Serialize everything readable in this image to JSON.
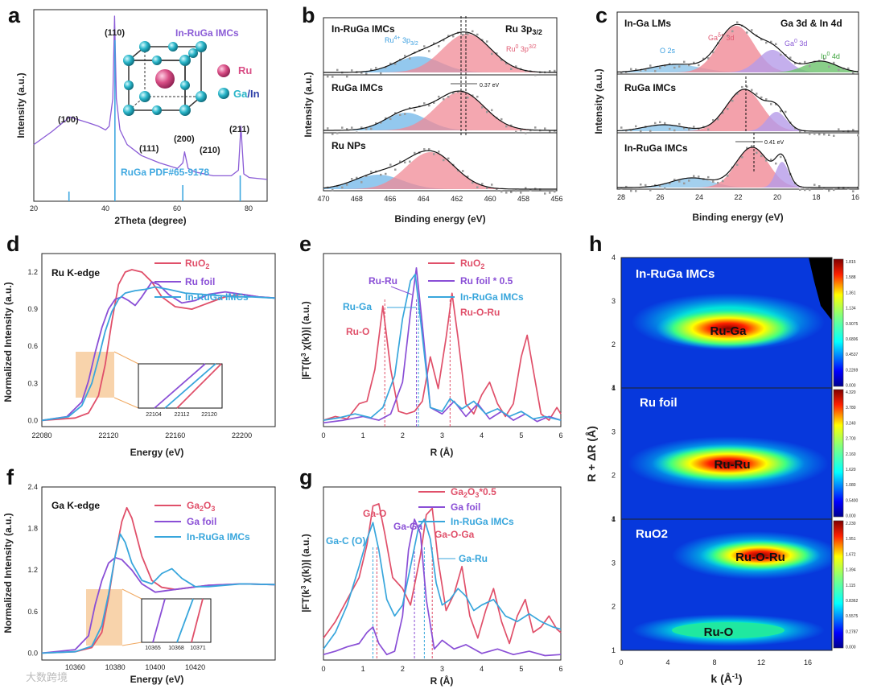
{
  "panels": {
    "a": {
      "label": "a",
      "xlabel": "2Theta (degree)",
      "ylabel": "Intensity (a.u.)",
      "xticks": [
        "20",
        "40",
        "60",
        "80"
      ],
      "series_label": "In-RuGa IMCs",
      "peaks": [
        "(100)",
        "(110)",
        "(111)",
        "(200)",
        "(210)",
        "(211)"
      ],
      "reference": "RuGa PDF#65-9178",
      "legend": [
        "Ru",
        "Ga/In"
      ],
      "colors": {
        "pattern": "#8a5bd6",
        "reference": "#3fa8e0",
        "ru": "#d94f86",
        "ga": "#29b5c9",
        "in": "#2c3ea8"
      }
    },
    "b": {
      "label": "b",
      "title": "Ru 3p3/2",
      "xlabel": "Binding energy (eV)",
      "ylabel": "Intensity (a.u.)",
      "xticks": [
        "470",
        "468",
        "466",
        "464",
        "462",
        "460",
        "458",
        "456"
      ],
      "rows": [
        "In-RuGa IMCs",
        "RuGa IMCs",
        "Ru NPs"
      ],
      "components": [
        "Ru4+ 3p3/2",
        "Ru0 3p3/2"
      ],
      "shift": "0.37 eV",
      "colors": {
        "ru4": "#6fb6e8",
        "ru0": "#f08a96",
        "envelope": "#111111",
        "dots": "#999999"
      }
    },
    "c": {
      "label": "c",
      "title": "Ga 3d & In 4d",
      "xlabel": "Binding energy (eV)",
      "ylabel": "Intensity (a.u.)",
      "xticks": [
        "28",
        "26",
        "24",
        "22",
        "20",
        "18",
        "16"
      ],
      "rows": [
        "In-Ga LMs",
        "RuGa IMCs",
        "In-RuGa IMCs"
      ],
      "components": [
        "O 2s",
        "Gaδ+ 3d",
        "Ga0 3d",
        "In0 4d"
      ],
      "shift": "0.41 eV",
      "colors": {
        "o2s": "#8cc4ea",
        "gad": "#f08a96",
        "ga0": "#b59be8",
        "in0": "#6cc26c"
      }
    },
    "d": {
      "label": "d",
      "title": "Ru K-edge",
      "xlabel": "Energy (eV)",
      "ylabel": "Normalized Intensity (a.u.)",
      "xticks": [
        "22080",
        "22120",
        "22160",
        "22200"
      ],
      "yticks": [
        "0.0",
        "0.3",
        "0.6",
        "0.9",
        "1.2"
      ],
      "inset_ticks": [
        "22104",
        "22112",
        "22120"
      ],
      "legend": [
        "RuO2",
        "Ru foil",
        "In-RuGa IMCs"
      ],
      "colors": {
        "ruo2": "#e0506a",
        "foil": "#8a4fd6",
        "imc": "#38a6dc",
        "box": "#f6c48f"
      }
    },
    "e": {
      "label": "e",
      "xlabel": "R (Å)",
      "ylabel": "|FT(k3 χ(k))| (a.u.)",
      "xticks": [
        "0",
        "1",
        "2",
        "3",
        "4",
        "5",
        "6"
      ],
      "legend": [
        "RuO2",
        "Ru foil * 0.5",
        "In-RuGa IMCs",
        "Ru-O-Ru"
      ],
      "annotations": [
        "Ru-Ru",
        "Ru-Ga",
        "Ru-O"
      ]
    },
    "f": {
      "label": "f",
      "title": "Ga K-edge",
      "xlabel": "Energy (eV)",
      "ylabel": "Normalized Intensity (a.u.)",
      "xticks": [
        "10360",
        "10380",
        "10400",
        "10420"
      ],
      "yticks": [
        "0.0",
        "0.6",
        "1.2",
        "1.8",
        "2.4"
      ],
      "inset_ticks": [
        "10365",
        "10368",
        "10371"
      ],
      "legend": [
        "Ga2O3",
        "Ga foil",
        "In-RuGa IMCs"
      ]
    },
    "g": {
      "label": "g",
      "xlabel": "R (Å)",
      "ylabel": "|FT(k3 χ(k))| (a.u.)",
      "xticks": [
        "0",
        "1",
        "2",
        "3",
        "4",
        "5",
        "6"
      ],
      "legend": [
        "Ga2O3*0.5",
        "Ga foil",
        "In-RuGa IMCs"
      ],
      "annotations": [
        "Ga-O",
        "Ga-Ga",
        "Ga-O-Ga",
        "Ga-C (O)",
        "Ga-Ru"
      ]
    },
    "h": {
      "label": "h",
      "xlabel": "k (Å-1)",
      "ylabel": "R + ΔR (Å)",
      "xticks": [
        "0",
        "4",
        "8",
        "12",
        "16"
      ],
      "yticks": [
        "1",
        "2",
        "3",
        "4"
      ],
      "maps": [
        {
          "name": "In-RuGa IMCs",
          "feature": "Ru-Ga",
          "scale": [
            "1.815",
            "1.588",
            "1.361",
            "1.134",
            "0.9075",
            "0.6806",
            "0.4537",
            "0.2269",
            "0.000"
          ]
        },
        {
          "name": "Ru foil",
          "feature": "Ru-Ru",
          "scale": [
            "4.320",
            "3.780",
            "3.240",
            "2.700",
            "2.160",
            "1.620",
            "1.080",
            "0.5400",
            "0.000"
          ]
        },
        {
          "name": "RuO2",
          "feature": "Ru-O-Ru",
          "feature2": "Ru-O",
          "scale": [
            "2.230",
            "1.951",
            "1.672",
            "1.394",
            "1.115",
            "0.8362",
            "0.5575",
            "0.2787",
            "0.000"
          ]
        }
      ]
    }
  },
  "watermark": "大数跨境",
  "chart_data": [
    {
      "type": "line",
      "panel": "a",
      "xlabel": "2Theta (degree)",
      "ylabel": "Intensity (a.u.)",
      "xlim": [
        20,
        85
      ],
      "series": [
        {
          "name": "In-RuGa IMCs",
          "x": [
            20,
            25,
            30,
            35,
            38,
            40,
            41,
            42,
            42.5,
            43,
            44,
            46,
            50,
            55,
            60,
            61.5,
            62,
            63,
            65,
            70,
            75,
            77,
            77.7,
            78.5,
            80,
            85
          ],
          "y": [
            0.3,
            0.37,
            0.45,
            0.42,
            0.4,
            0.38,
            0.4,
            0.55,
            1.0,
            0.55,
            0.38,
            0.3,
            0.24,
            0.2,
            0.17,
            0.2,
            0.26,
            0.17,
            0.15,
            0.13,
            0.13,
            0.16,
            0.4,
            0.14,
            0.12,
            0.11
          ]
        },
        {
          "name": "RuGa PDF#65-9178",
          "x": [
            29.8,
            42.6,
            61.5,
            77.5
          ],
          "y": [
            0.06,
            1.0,
            0.1,
            0.16
          ]
        }
      ]
    },
    {
      "type": "line",
      "panel": "d",
      "xlabel": "Energy (eV)",
      "ylabel": "Normalized Intensity (a.u.)",
      "xlim": [
        22080,
        22220
      ],
      "ylim": [
        -0.05,
        1.35
      ],
      "series": [
        {
          "name": "RuO2",
          "x": [
            22080,
            22100,
            22108,
            22114,
            22118,
            22122,
            22126,
            22130,
            22134,
            22140,
            22146,
            22152,
            22160,
            22170,
            22180,
            22190,
            22200,
            22210,
            22220
          ],
          "y": [
            0.0,
            0.02,
            0.06,
            0.2,
            0.45,
            0.8,
            1.1,
            1.2,
            1.22,
            1.2,
            1.12,
            1.0,
            0.92,
            0.9,
            0.95,
            1.0,
            1.02,
            1.0,
            0.99
          ]
        },
        {
          "name": "Ru foil",
          "x": [
            22080,
            22095,
            22104,
            22108,
            22112,
            22116,
            22120,
            22124,
            22128,
            22132,
            22136,
            22140,
            22146,
            22150,
            22156,
            22164,
            22172,
            22180,
            22190,
            22200,
            22210,
            22220
          ],
          "y": [
            0.0,
            0.03,
            0.15,
            0.32,
            0.55,
            0.75,
            0.9,
            0.98,
            1.0,
            0.97,
            0.93,
            1.0,
            1.12,
            1.1,
            1.02,
            0.95,
            0.97,
            1.02,
            1.04,
            1.02,
            1.0,
            0.99
          ]
        },
        {
          "name": "In-RuGa IMCs",
          "x": [
            22080,
            22096,
            22104,
            22110,
            22114,
            22118,
            22122,
            22126,
            22130,
            22136,
            22142,
            22148,
            22156,
            22166,
            22176,
            22186,
            22196,
            22206,
            22220
          ],
          "y": [
            0.0,
            0.03,
            0.12,
            0.3,
            0.5,
            0.72,
            0.88,
            0.98,
            1.03,
            1.05,
            1.06,
            1.08,
            1.06,
            1.03,
            1.02,
            1.01,
            1.0,
            1.0,
            0.99
          ]
        }
      ]
    },
    {
      "type": "line",
      "panel": "e",
      "xlabel": "R (Å)",
      "ylabel": "|FT(k3 χ(k))| (a.u.)",
      "xlim": [
        0,
        6
      ],
      "series": [
        {
          "name": "RuO2",
          "x": [
            0,
            0.3,
            0.6,
            0.9,
            1.1,
            1.3,
            1.5,
            1.7,
            1.9,
            2.1,
            2.3,
            2.5,
            2.7,
            2.9,
            3.1,
            3.25,
            3.4,
            3.6,
            3.8,
            4.0,
            4.2,
            4.4,
            4.6,
            4.8,
            5.0,
            5.15,
            5.3,
            5.5,
            5.7,
            5.9,
            6.0
          ],
          "y": [
            0.05,
            0.08,
            0.06,
            0.18,
            0.2,
            0.45,
            0.95,
            0.45,
            0.12,
            0.1,
            0.12,
            0.2,
            0.55,
            0.3,
            0.7,
            1.05,
            0.7,
            0.18,
            0.1,
            0.25,
            0.35,
            0.18,
            0.08,
            0.18,
            0.55,
            0.72,
            0.45,
            0.1,
            0.05,
            0.15,
            0.1
          ]
        },
        {
          "name": "Ru foil * 0.5",
          "x": [
            0,
            0.5,
            1.0,
            1.4,
            1.7,
            2.0,
            2.2,
            2.35,
            2.5,
            2.7,
            3.0,
            3.3,
            3.6,
            3.9,
            4.2,
            4.5,
            4.8,
            5.1,
            5.4,
            5.7,
            6.0
          ],
          "y": [
            0.03,
            0.05,
            0.08,
            0.05,
            0.1,
            0.35,
            0.9,
            1.25,
            0.8,
            0.15,
            0.1,
            0.2,
            0.08,
            0.18,
            0.06,
            0.12,
            0.05,
            0.1,
            0.04,
            0.08,
            0.05
          ]
        },
        {
          "name": "In-RuGa IMCs",
          "x": [
            0,
            0.4,
            0.8,
            1.2,
            1.5,
            1.8,
            2.0,
            2.2,
            2.32,
            2.45,
            2.7,
            3.0,
            3.2,
            3.5,
            3.8,
            4.1,
            4.4,
            4.7,
            5.0,
            5.3,
            5.6,
            6.0
          ],
          "y": [
            0.05,
            0.07,
            0.1,
            0.07,
            0.15,
            0.4,
            0.85,
            1.15,
            1.2,
            0.85,
            0.15,
            0.12,
            0.22,
            0.14,
            0.2,
            0.1,
            0.14,
            0.08,
            0.12,
            0.06,
            0.08,
            0.05
          ]
        }
      ]
    },
    {
      "type": "line",
      "panel": "f",
      "xlabel": "Energy (eV)",
      "ylabel": "Normalized Intensity (a.u.)",
      "xlim": [
        10350,
        10420
      ],
      "ylim": [
        -0.1,
        2.4
      ],
      "series": [
        {
          "name": "Ga2O3",
          "x": [
            10350,
            10360,
            10365,
            10368,
            10370,
            10372,
            10374,
            10375.5,
            10377,
            10380,
            10383,
            10386,
            10390,
            10395,
            10400,
            10410,
            10420
          ],
          "y": [
            0.0,
            0.02,
            0.08,
            0.3,
            0.8,
            1.4,
            1.9,
            2.1,
            1.95,
            1.4,
            1.05,
            0.95,
            0.92,
            0.95,
            0.98,
            1.0,
            0.99
          ]
        },
        {
          "name": "Ga foil",
          "x": [
            10350,
            10360,
            10364,
            10366,
            10368,
            10370,
            10372,
            10374,
            10377,
            10380,
            10384,
            10390,
            10400,
            10410,
            10420
          ],
          "y": [
            0.0,
            0.05,
            0.25,
            0.7,
            1.05,
            1.3,
            1.38,
            1.35,
            1.2,
            1.0,
            0.88,
            0.92,
            0.98,
            1.0,
            0.99
          ]
        },
        {
          "name": "In-RuGa IMCs",
          "x": [
            10350,
            10360,
            10365,
            10368,
            10370,
            10372,
            10373.5,
            10375,
            10377,
            10380,
            10383,
            10386,
            10389,
            10392,
            10396,
            10400,
            10410,
            10420
          ],
          "y": [
            0.0,
            0.02,
            0.1,
            0.4,
            0.85,
            1.4,
            1.72,
            1.6,
            1.3,
            1.05,
            1.0,
            1.15,
            1.22,
            1.08,
            0.96,
            0.96,
            1.0,
            0.99
          ]
        }
      ]
    },
    {
      "type": "line",
      "panel": "g",
      "xlabel": "R (Å)",
      "ylabel": "|FT(k3 χ(k))| (a.u.)",
      "xlim": [
        0,
        6
      ],
      "series": [
        {
          "name": "Ga2O3*0.5",
          "x": [
            0,
            0.3,
            0.6,
            0.9,
            1.1,
            1.25,
            1.4,
            1.55,
            1.75,
            2.0,
            2.2,
            2.45,
            2.6,
            2.75,
            2.9,
            3.1,
            3.3,
            3.5,
            3.7,
            3.9,
            4.1,
            4.3,
            4.5,
            4.7,
            4.9,
            5.1,
            5.3,
            5.5,
            5.7,
            5.9,
            6.0
          ],
          "y": [
            0.2,
            0.35,
            0.55,
            0.75,
            1.05,
            1.4,
            1.42,
            1.15,
            0.75,
            0.65,
            0.5,
            0.95,
            1.32,
            1.38,
            0.9,
            0.45,
            0.6,
            0.85,
            0.4,
            0.2,
            0.45,
            0.65,
            0.35,
            0.15,
            0.4,
            0.55,
            0.25,
            0.3,
            0.4,
            0.28,
            0.25
          ]
        },
        {
          "name": "Ga foil",
          "x": [
            0,
            0.3,
            0.6,
            0.9,
            1.1,
            1.25,
            1.4,
            1.6,
            1.8,
            2.0,
            2.15,
            2.3,
            2.45,
            2.6,
            2.8,
            3.0,
            3.3,
            3.6,
            4.0,
            4.4,
            4.8,
            5.2,
            5.6,
            6.0
          ],
          "y": [
            0.05,
            0.08,
            0.12,
            0.15,
            0.25,
            0.3,
            0.15,
            0.05,
            0.08,
            0.4,
            1.0,
            1.28,
            1.15,
            0.55,
            0.1,
            0.18,
            0.1,
            0.14,
            0.06,
            0.1,
            0.05,
            0.08,
            0.04,
            0.05
          ]
        },
        {
          "name": "In-RuGa IMCs",
          "x": [
            0,
            0.3,
            0.6,
            0.9,
            1.1,
            1.25,
            1.4,
            1.6,
            1.8,
            2.0,
            2.2,
            2.4,
            2.55,
            2.7,
            2.85,
            3.0,
            3.2,
            3.4,
            3.6,
            3.8,
            4.0,
            4.3,
            4.6,
            4.9,
            5.2,
            5.5,
            5.8,
            6.0
          ],
          "y": [
            0.1,
            0.25,
            0.5,
            0.85,
            1.1,
            1.25,
            1.0,
            0.55,
            0.4,
            0.5,
            0.85,
            1.2,
            1.28,
            1.1,
            0.7,
            0.5,
            0.55,
            0.65,
            0.58,
            0.45,
            0.5,
            0.55,
            0.4,
            0.35,
            0.42,
            0.35,
            0.3,
            0.28
          ]
        }
      ]
    }
  ]
}
